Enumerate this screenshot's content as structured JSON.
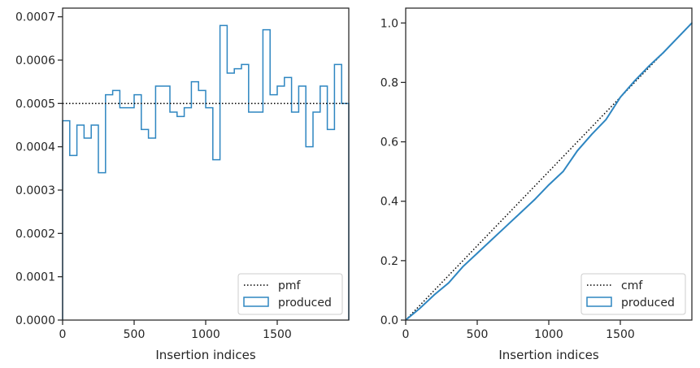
{
  "chart_data": [
    {
      "type": "histogram-step",
      "xlabel": "Insertion indices",
      "ylabel": "",
      "xlim": [
        0,
        2000
      ],
      "ylim": [
        0,
        0.00072
      ],
      "xticks": [
        "0",
        "500",
        "1000",
        "1500"
      ],
      "yticks": [
        "0.0000",
        "0.0001",
        "0.0002",
        "0.0003",
        "0.0004",
        "0.0005",
        "0.0006",
        "0.0007"
      ],
      "grid": false,
      "legend_position": "lower-right",
      "reference": {
        "name": "pmf",
        "style": "dotted",
        "color": "#000000",
        "value": 0.0005
      },
      "series": [
        {
          "name": "produced",
          "color": "#2e86c1",
          "bin_width": 50,
          "values": [
            0.00046,
            0.00038,
            0.00045,
            0.00042,
            0.00045,
            0.00034,
            0.00052,
            0.00053,
            0.00049,
            0.00049,
            0.00052,
            0.00044,
            0.00042,
            0.00054,
            0.00054,
            0.00048,
            0.00047,
            0.00049,
            0.00055,
            0.00053,
            0.00049,
            0.00037,
            0.00068,
            0.00057,
            0.00058,
            0.00059,
            0.00048,
            0.00048,
            0.00067,
            0.00052,
            0.00054,
            0.00056,
            0.00048,
            0.00054,
            0.0004,
            0.00048,
            0.00054,
            0.00044,
            0.00059,
            0.0005
          ]
        }
      ]
    },
    {
      "type": "line-step",
      "xlabel": "Insertion indices",
      "ylabel": "",
      "xlim": [
        0,
        2000
      ],
      "ylim": [
        0,
        1.05
      ],
      "xticks": [
        "0",
        "500",
        "1000",
        "1500"
      ],
      "yticks": [
        "0.0",
        "0.2",
        "0.4",
        "0.6",
        "0.8",
        "1.0"
      ],
      "grid": false,
      "legend_position": "lower-right",
      "reference": {
        "name": "cmf",
        "style": "dotted",
        "color": "#000000",
        "x": [
          0,
          2000
        ],
        "y": [
          0,
          1.0
        ]
      },
      "series": [
        {
          "name": "produced",
          "color": "#2e86c1",
          "x": [
            0,
            100,
            200,
            300,
            400,
            500,
            600,
            700,
            800,
            900,
            1000,
            1100,
            1200,
            1300,
            1400,
            1500,
            1600,
            1700,
            1800,
            1900,
            2000
          ],
          "y": [
            0.0,
            0.04,
            0.085,
            0.125,
            0.18,
            0.225,
            0.27,
            0.315,
            0.36,
            0.405,
            0.455,
            0.5,
            0.57,
            0.625,
            0.675,
            0.75,
            0.805,
            0.855,
            0.9,
            0.95,
            1.0
          ]
        }
      ]
    }
  ]
}
